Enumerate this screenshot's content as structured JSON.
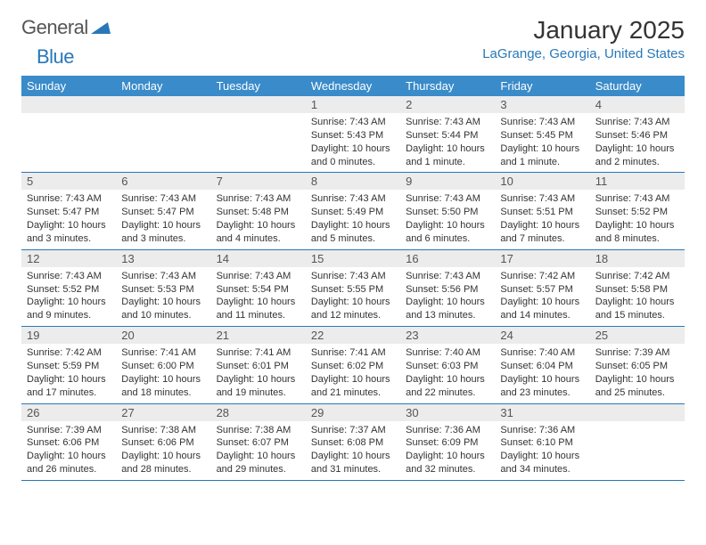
{
  "logo": {
    "text1": "General",
    "text2": "Blue"
  },
  "title": "January 2025",
  "location": "LaGrange, Georgia, United States",
  "colors": {
    "header_bg": "#3a8bc9",
    "accent": "#2878b8",
    "daynum_bg": "#ececec",
    "text": "#333333"
  },
  "day_names": [
    "Sunday",
    "Monday",
    "Tuesday",
    "Wednesday",
    "Thursday",
    "Friday",
    "Saturday"
  ],
  "weeks": [
    [
      null,
      null,
      null,
      {
        "n": "1",
        "sr": "7:43 AM",
        "ss": "5:43 PM",
        "dl": "10 hours and 0 minutes."
      },
      {
        "n": "2",
        "sr": "7:43 AM",
        "ss": "5:44 PM",
        "dl": "10 hours and 1 minute."
      },
      {
        "n": "3",
        "sr": "7:43 AM",
        "ss": "5:45 PM",
        "dl": "10 hours and 1 minute."
      },
      {
        "n": "4",
        "sr": "7:43 AM",
        "ss": "5:46 PM",
        "dl": "10 hours and 2 minutes."
      }
    ],
    [
      {
        "n": "5",
        "sr": "7:43 AM",
        "ss": "5:47 PM",
        "dl": "10 hours and 3 minutes."
      },
      {
        "n": "6",
        "sr": "7:43 AM",
        "ss": "5:47 PM",
        "dl": "10 hours and 3 minutes."
      },
      {
        "n": "7",
        "sr": "7:43 AM",
        "ss": "5:48 PM",
        "dl": "10 hours and 4 minutes."
      },
      {
        "n": "8",
        "sr": "7:43 AM",
        "ss": "5:49 PM",
        "dl": "10 hours and 5 minutes."
      },
      {
        "n": "9",
        "sr": "7:43 AM",
        "ss": "5:50 PM",
        "dl": "10 hours and 6 minutes."
      },
      {
        "n": "10",
        "sr": "7:43 AM",
        "ss": "5:51 PM",
        "dl": "10 hours and 7 minutes."
      },
      {
        "n": "11",
        "sr": "7:43 AM",
        "ss": "5:52 PM",
        "dl": "10 hours and 8 minutes."
      }
    ],
    [
      {
        "n": "12",
        "sr": "7:43 AM",
        "ss": "5:52 PM",
        "dl": "10 hours and 9 minutes."
      },
      {
        "n": "13",
        "sr": "7:43 AM",
        "ss": "5:53 PM",
        "dl": "10 hours and 10 minutes."
      },
      {
        "n": "14",
        "sr": "7:43 AM",
        "ss": "5:54 PM",
        "dl": "10 hours and 11 minutes."
      },
      {
        "n": "15",
        "sr": "7:43 AM",
        "ss": "5:55 PM",
        "dl": "10 hours and 12 minutes."
      },
      {
        "n": "16",
        "sr": "7:43 AM",
        "ss": "5:56 PM",
        "dl": "10 hours and 13 minutes."
      },
      {
        "n": "17",
        "sr": "7:42 AM",
        "ss": "5:57 PM",
        "dl": "10 hours and 14 minutes."
      },
      {
        "n": "18",
        "sr": "7:42 AM",
        "ss": "5:58 PM",
        "dl": "10 hours and 15 minutes."
      }
    ],
    [
      {
        "n": "19",
        "sr": "7:42 AM",
        "ss": "5:59 PM",
        "dl": "10 hours and 17 minutes."
      },
      {
        "n": "20",
        "sr": "7:41 AM",
        "ss": "6:00 PM",
        "dl": "10 hours and 18 minutes."
      },
      {
        "n": "21",
        "sr": "7:41 AM",
        "ss": "6:01 PM",
        "dl": "10 hours and 19 minutes."
      },
      {
        "n": "22",
        "sr": "7:41 AM",
        "ss": "6:02 PM",
        "dl": "10 hours and 21 minutes."
      },
      {
        "n": "23",
        "sr": "7:40 AM",
        "ss": "6:03 PM",
        "dl": "10 hours and 22 minutes."
      },
      {
        "n": "24",
        "sr": "7:40 AM",
        "ss": "6:04 PM",
        "dl": "10 hours and 23 minutes."
      },
      {
        "n": "25",
        "sr": "7:39 AM",
        "ss": "6:05 PM",
        "dl": "10 hours and 25 minutes."
      }
    ],
    [
      {
        "n": "26",
        "sr": "7:39 AM",
        "ss": "6:06 PM",
        "dl": "10 hours and 26 minutes."
      },
      {
        "n": "27",
        "sr": "7:38 AM",
        "ss": "6:06 PM",
        "dl": "10 hours and 28 minutes."
      },
      {
        "n": "28",
        "sr": "7:38 AM",
        "ss": "6:07 PM",
        "dl": "10 hours and 29 minutes."
      },
      {
        "n": "29",
        "sr": "7:37 AM",
        "ss": "6:08 PM",
        "dl": "10 hours and 31 minutes."
      },
      {
        "n": "30",
        "sr": "7:36 AM",
        "ss": "6:09 PM",
        "dl": "10 hours and 32 minutes."
      },
      {
        "n": "31",
        "sr": "7:36 AM",
        "ss": "6:10 PM",
        "dl": "10 hours and 34 minutes."
      },
      null
    ]
  ],
  "labels": {
    "sunrise": "Sunrise:",
    "sunset": "Sunset:",
    "daylight": "Daylight:"
  }
}
